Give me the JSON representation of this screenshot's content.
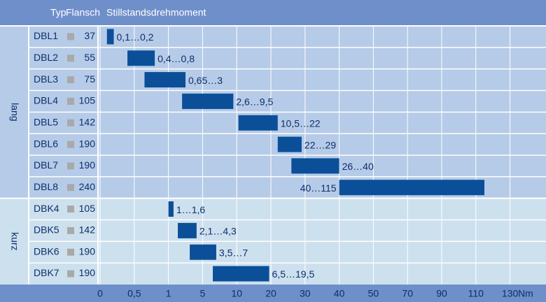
{
  "chart_data": {
    "type": "range-bar",
    "headers": [
      "Typ",
      "Flansch",
      "Stillstandsdrehmoment"
    ],
    "unit": "Nm",
    "bar_color": "#0b4f98",
    "xticks": [
      0,
      {
        "value": 0.5,
        "label": "0,5"
      },
      1,
      5,
      10,
      20,
      30,
      40,
      50,
      70,
      90,
      110,
      130
    ],
    "xlim": [
      0,
      130
    ],
    "grid": true,
    "groups": [
      {
        "name": "lang",
        "rows": [
          {
            "type": "DBL1",
            "flange": 37,
            "min": 0.1,
            "max": 0.2,
            "label": "0,1…0,2"
          },
          {
            "type": "DBL2",
            "flange": 55,
            "min": 0.4,
            "max": 0.8,
            "label": "0,4…0,8"
          },
          {
            "type": "DBL3",
            "flange": 75,
            "min": 0.65,
            "max": 3,
            "label": "0,65…3"
          },
          {
            "type": "DBL4",
            "flange": 105,
            "min": 2.6,
            "max": 9.5,
            "label": "2,6…9,5"
          },
          {
            "type": "DBL5",
            "flange": 142,
            "min": 10.5,
            "max": 22,
            "label": "10,5…22"
          },
          {
            "type": "DBL6",
            "flange": 190,
            "min": 22,
            "max": 29,
            "label": "22…29"
          },
          {
            "type": "DBL7",
            "flange": 190,
            "min": 26,
            "max": 40,
            "label": "26…40"
          },
          {
            "type": "DBL8",
            "flange": 240,
            "min": 40,
            "max": 115,
            "label": "40…115"
          }
        ]
      },
      {
        "name": "kurz",
        "rows": [
          {
            "type": "DBK4",
            "flange": 105,
            "min": 1,
            "max": 1.6,
            "label": "1…1,6"
          },
          {
            "type": "DBK5",
            "flange": 142,
            "min": 2.1,
            "max": 4.3,
            "label": "2,1…4,3"
          },
          {
            "type": "DBK6",
            "flange": 190,
            "min": 3.5,
            "max": 7,
            "label": "3,5…7"
          },
          {
            "type": "DBK7",
            "flange": 190,
            "min": 6.5,
            "max": 19.5,
            "label": "6,5…19,5"
          }
        ]
      }
    ]
  }
}
